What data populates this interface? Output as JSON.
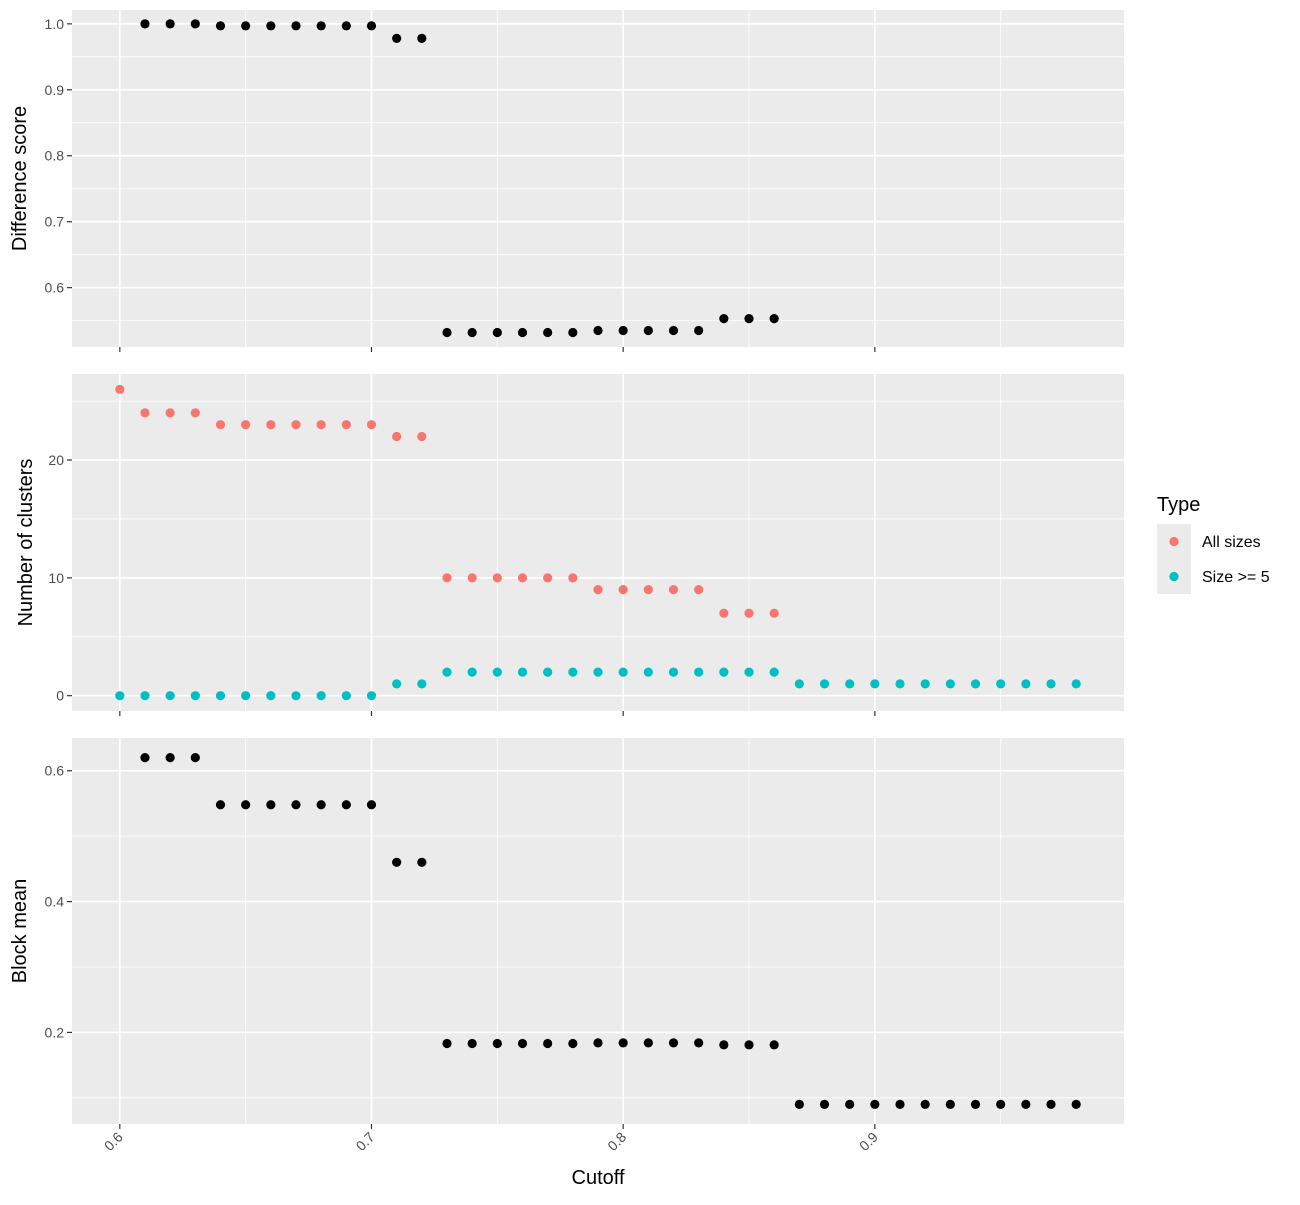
{
  "chart_data": {
    "type": "scatter",
    "x_axis": {
      "label": "Cutoff",
      "range": [
        0.581,
        0.999
      ],
      "ticks": [
        0.6,
        0.7,
        0.8,
        0.9
      ],
      "tick_labels": [
        "0.6",
        "0.7",
        "0.8",
        "0.9"
      ],
      "minor_ticks": [
        0.65,
        0.75,
        0.85,
        0.95
      ]
    },
    "legend": {
      "title": "Type",
      "placement": "right",
      "entries": [
        {
          "label": "All sizes",
          "color": "#F8766D"
        },
        {
          "label": "Size >= 5",
          "color": "#00BFC4"
        }
      ]
    },
    "panels": [
      {
        "id": "difference",
        "ylabel": "Difference score",
        "ylim": [
          0.51,
          1.021
        ],
        "yticks": [
          0.6,
          0.7,
          0.8,
          0.9,
          1.0
        ],
        "ytick_labels": [
          "0.6",
          "0.7",
          "0.8",
          "0.9",
          "1.0"
        ],
        "yminor": [
          0.55,
          0.65,
          0.75,
          0.85,
          0.95
        ],
        "series": [
          {
            "color": "#000000",
            "x": [
              0.61,
              0.62,
              0.63,
              0.64,
              0.65,
              0.66,
              0.67,
              0.68,
              0.69,
              0.7,
              0.71,
              0.72,
              0.73,
              0.74,
              0.75,
              0.76,
              0.77,
              0.78,
              0.79,
              0.8,
              0.81,
              0.82,
              0.83,
              0.84,
              0.85,
              0.86
            ],
            "y": [
              1.0,
              1.0,
              1.0,
              0.997,
              0.997,
              0.997,
              0.997,
              0.997,
              0.997,
              0.997,
              0.978,
              0.978,
              0.532,
              0.532,
              0.532,
              0.532,
              0.532,
              0.532,
              0.535,
              0.535,
              0.535,
              0.535,
              0.535,
              0.553,
              0.553,
              0.553
            ]
          }
        ]
      },
      {
        "id": "clusters",
        "ylabel": "Number of clusters",
        "ylim": [
          -1.3,
          27.3
        ],
        "yticks": [
          0,
          10,
          20
        ],
        "ytick_labels": [
          "0",
          "10",
          "20"
        ],
        "yminor": [
          5,
          15,
          25
        ],
        "series": [
          {
            "name": "All sizes",
            "color": "#F8766D",
            "x": [
              0.6,
              0.61,
              0.62,
              0.63,
              0.64,
              0.65,
              0.66,
              0.67,
              0.68,
              0.69,
              0.7,
              0.71,
              0.72,
              0.73,
              0.74,
              0.75,
              0.76,
              0.77,
              0.78,
              0.79,
              0.8,
              0.81,
              0.82,
              0.83,
              0.84,
              0.85,
              0.86
            ],
            "y": [
              26,
              24,
              24,
              24,
              23,
              23,
              23,
              23,
              23,
              23,
              23,
              22,
              22,
              10,
              10,
              10,
              10,
              10,
              10,
              9,
              9,
              9,
              9,
              9,
              7,
              7,
              7
            ]
          },
          {
            "name": "Size >= 5",
            "color": "#00BFC4",
            "x": [
              0.6,
              0.61,
              0.62,
              0.63,
              0.64,
              0.65,
              0.66,
              0.67,
              0.68,
              0.69,
              0.7,
              0.71,
              0.72,
              0.73,
              0.74,
              0.75,
              0.76,
              0.77,
              0.78,
              0.79,
              0.8,
              0.81,
              0.82,
              0.83,
              0.84,
              0.85,
              0.86,
              0.87,
              0.88,
              0.89,
              0.9,
              0.91,
              0.92,
              0.93,
              0.94,
              0.95,
              0.96,
              0.97,
              0.98
            ],
            "y": [
              0,
              0,
              0,
              0,
              0,
              0,
              0,
              0,
              0,
              0,
              0,
              1,
              1,
              2,
              2,
              2,
              2,
              2,
              2,
              2,
              2,
              2,
              2,
              2,
              2,
              2,
              2,
              1,
              1,
              1,
              1,
              1,
              1,
              1,
              1,
              1,
              1,
              1,
              1
            ]
          }
        ]
      },
      {
        "id": "blockmean",
        "ylabel": "Block mean",
        "ylim": [
          0.06,
          0.65
        ],
        "yticks": [
          0.2,
          0.4,
          0.6
        ],
        "ytick_labels": [
          "0.2",
          "0.4",
          "0.6"
        ],
        "yminor": [
          0.1,
          0.3,
          0.5
        ],
        "series": [
          {
            "color": "#000000",
            "x": [
              0.61,
              0.62,
              0.63,
              0.64,
              0.65,
              0.66,
              0.67,
              0.68,
              0.69,
              0.7,
              0.71,
              0.72,
              0.73,
              0.74,
              0.75,
              0.76,
              0.77,
              0.78,
              0.79,
              0.8,
              0.81,
              0.82,
              0.83,
              0.84,
              0.85,
              0.86,
              0.87,
              0.88,
              0.89,
              0.9,
              0.91,
              0.92,
              0.93,
              0.94,
              0.95,
              0.96,
              0.97,
              0.98
            ],
            "y": [
              0.62,
              0.62,
              0.62,
              0.548,
              0.548,
              0.548,
              0.548,
              0.548,
              0.548,
              0.548,
              0.46,
              0.46,
              0.183,
              0.183,
              0.183,
              0.183,
              0.183,
              0.183,
              0.184,
              0.184,
              0.184,
              0.184,
              0.184,
              0.181,
              0.181,
              0.181,
              0.09,
              0.09,
              0.09,
              0.09,
              0.09,
              0.09,
              0.09,
              0.09,
              0.09,
              0.09,
              0.09,
              0.09
            ]
          }
        ]
      }
    ]
  }
}
